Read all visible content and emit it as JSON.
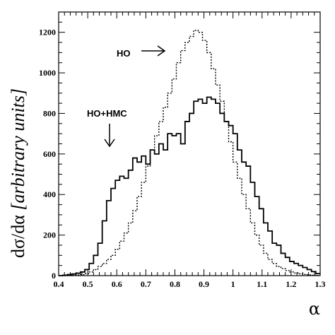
{
  "chart_data": {
    "type": "line",
    "title": "",
    "xlabel": "α",
    "ylabel": "dσ/dα [arbitrary units]",
    "ylabel_main": "dσ/dα ",
    "ylabel_italic": "[arbitrary units]",
    "xlim": [
      0.4,
      1.3
    ],
    "ylim": [
      0,
      1300
    ],
    "x_ticks": [
      "0.4",
      "0.5",
      "0.6",
      "0.7",
      "0.8",
      "0.9",
      "1",
      "1.1",
      "1.2",
      "1.3"
    ],
    "y_ticks": [
      "0",
      "200",
      "400",
      "600",
      "800",
      "1000",
      "1200"
    ],
    "grid": false,
    "annotations": [
      {
        "text": "HO",
        "arrow": "right"
      },
      {
        "text": "HO+HMC",
        "arrow": "down"
      }
    ],
    "bin_edges_start": 0.4,
    "bin_width": 0.015,
    "series": [
      {
        "name": "HO+HMC",
        "style": "solid",
        "color": "#000000",
        "values": [
          0,
          2,
          5,
          8,
          12,
          18,
          30,
          60,
          100,
          160,
          270,
          370,
          430,
          470,
          490,
          480,
          520,
          580,
          560,
          590,
          550,
          620,
          600,
          650,
          620,
          700,
          690,
          700,
          650,
          760,
          800,
          860,
          870,
          850,
          880,
          870,
          850,
          800,
          760,
          740,
          700,
          620,
          560,
          540,
          460,
          390,
          330,
          260,
          220,
          160,
          150,
          110,
          90,
          70,
          60,
          50,
          40,
          30,
          20,
          10
        ]
      },
      {
        "name": "HO",
        "style": "dotted",
        "color": "#000000",
        "values": [
          0,
          0,
          1,
          2,
          3,
          5,
          10,
          18,
          30,
          45,
          60,
          80,
          100,
          130,
          170,
          210,
          260,
          320,
          390,
          460,
          540,
          620,
          690,
          760,
          830,
          900,
          970,
          1050,
          1110,
          1150,
          1180,
          1210,
          1200,
          1160,
          1100,
          1020,
          940,
          860,
          760,
          660,
          560,
          480,
          400,
          330,
          260,
          200,
          150,
          110,
          80,
          60,
          45,
          35,
          25,
          18,
          13,
          9,
          6,
          4,
          2,
          1
        ]
      }
    ]
  }
}
